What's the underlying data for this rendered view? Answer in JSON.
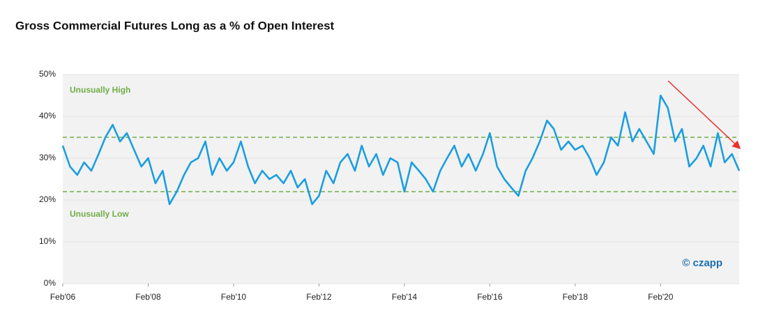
{
  "chart_data": {
    "type": "line",
    "title": "Gross Commercial Futures Long as a % of Open Interest",
    "x": [
      2006.08,
      2006.25,
      2006.42,
      2006.58,
      2006.75,
      2006.92,
      2007.08,
      2007.25,
      2007.42,
      2007.58,
      2007.75,
      2007.92,
      2008.08,
      2008.25,
      2008.42,
      2008.58,
      2008.75,
      2008.92,
      2009.08,
      2009.25,
      2009.42,
      2009.58,
      2009.75,
      2009.92,
      2010.08,
      2010.25,
      2010.42,
      2010.58,
      2010.75,
      2010.92,
      2011.08,
      2011.25,
      2011.42,
      2011.58,
      2011.75,
      2011.92,
      2012.08,
      2012.25,
      2012.42,
      2012.58,
      2012.75,
      2012.92,
      2013.08,
      2013.25,
      2013.42,
      2013.58,
      2013.75,
      2013.92,
      2014.08,
      2014.25,
      2014.42,
      2014.58,
      2014.75,
      2014.92,
      2015.08,
      2015.25,
      2015.42,
      2015.58,
      2015.75,
      2015.92,
      2016.08,
      2016.25,
      2016.42,
      2016.58,
      2016.75,
      2016.92,
      2017.08,
      2017.25,
      2017.42,
      2017.58,
      2017.75,
      2017.92,
      2018.08,
      2018.25,
      2018.42,
      2018.58,
      2018.75,
      2018.92,
      2019.08,
      2019.25,
      2019.42,
      2019.58,
      2019.75,
      2019.92,
      2020.08,
      2020.25,
      2020.42,
      2020.58,
      2020.75,
      2020.92,
      2021.08,
      2021.25,
      2021.42,
      2021.58,
      2021.75,
      2021.92
    ],
    "series": [
      {
        "color": "#1a9ee0",
        "values": [
          33,
          28,
          26,
          29,
          27,
          31,
          35,
          38,
          34,
          36,
          32,
          28,
          30,
          24,
          27,
          19,
          22,
          26,
          29,
          30,
          34,
          26,
          30,
          27,
          29,
          34,
          28,
          24,
          27,
          25,
          26,
          24,
          27,
          23,
          25,
          19,
          21,
          27,
          24,
          29,
          31,
          27,
          33,
          28,
          31,
          26,
          30,
          29,
          22,
          29,
          27,
          25,
          22,
          27,
          30,
          33,
          28,
          31,
          27,
          31,
          36,
          28,
          25,
          23,
          21,
          27,
          30,
          34,
          39,
          37,
          32,
          34,
          32,
          33,
          30,
          26,
          29,
          35,
          33,
          41,
          34,
          37,
          34,
          31,
          45,
          42,
          34,
          37,
          28,
          30,
          33,
          28,
          36,
          29,
          31,
          27
        ]
      }
    ],
    "xlim": [
      2006.08,
      2021.92
    ],
    "xticks": [
      {
        "value": 2006.08,
        "label": "Feb'06"
      },
      {
        "value": 2008.08,
        "label": "Feb'08"
      },
      {
        "value": 2010.08,
        "label": "Feb'10"
      },
      {
        "value": 2012.08,
        "label": "Feb'12"
      },
      {
        "value": 2014.08,
        "label": "Feb'14"
      },
      {
        "value": 2016.08,
        "label": "Feb'16"
      },
      {
        "value": 2018.08,
        "label": "Feb'18"
      },
      {
        "value": 2020.08,
        "label": "Feb'20"
      }
    ],
    "ylim": [
      0,
      50
    ],
    "yticks": [
      {
        "value": 0,
        "label": "0%"
      },
      {
        "value": 10,
        "label": "10%"
      },
      {
        "value": 20,
        "label": "20%"
      },
      {
        "value": 30,
        "label": "30%"
      },
      {
        "value": 40,
        "label": "40%"
      },
      {
        "value": 50,
        "label": "50%"
      }
    ],
    "grid": true,
    "reference_lines": [
      {
        "value": 35,
        "label": "Unusually High",
        "color": "#70ad47"
      },
      {
        "value": 22,
        "label": "Unusually Low",
        "color": "#70ad47"
      }
    ],
    "watermark": "© czapp"
  }
}
